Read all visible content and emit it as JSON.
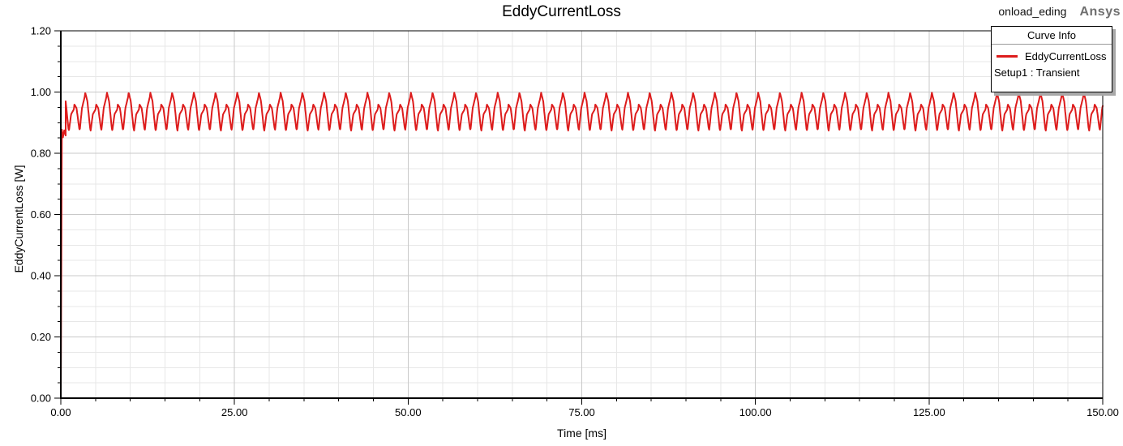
{
  "header": {
    "title": "EddyCurrentLoss",
    "doc_label": "onload_eding",
    "brand": "Ansys"
  },
  "legend": {
    "title": "Curve Info",
    "series_label": "EddyCurrentLoss",
    "series_sublabel": "Setup1 : Transient",
    "series_color": "#dd1c1c"
  },
  "axes": {
    "x": {
      "label": "Time [ms]",
      "min": 0,
      "max": 150,
      "tick_values": [
        0,
        25,
        50,
        75,
        100,
        125,
        150
      ],
      "tick_labels": [
        "0.00",
        "25.00",
        "50.00",
        "75.00",
        "100.00",
        "125.00",
        "150.00"
      ],
      "minor_step": 5
    },
    "y": {
      "label": "EddyCurrentLoss [W]",
      "min": 0,
      "max": 1.2,
      "tick_values": [
        0,
        0.2,
        0.4,
        0.6,
        0.8,
        1.0,
        1.2
      ],
      "tick_labels": [
        "0.00",
        "0.20",
        "0.40",
        "0.60",
        "0.80",
        "1.00",
        "1.20"
      ],
      "minor_step": 0.05
    }
  },
  "colors": {
    "curve": "#dd1c1c",
    "grid_minor": "#e7e7e7",
    "grid_major": "#c9c9c9",
    "axis": "#000000",
    "legend_shadow": "#a8a8a8",
    "brand_gray": "#6f6f6f"
  },
  "chart_data": {
    "type": "line",
    "title": "EddyCurrentLoss",
    "xlabel": "Time [ms]",
    "ylabel": "EddyCurrentLoss [W]",
    "xlim": [
      0,
      150
    ],
    "ylim": [
      0,
      1.2
    ],
    "x_major_step": 25,
    "x_minor_step": 5,
    "y_major_step": 0.2,
    "y_minor_step": 0.05,
    "grid": true,
    "legend_position": "top-right",
    "series": [
      {
        "name": "EddyCurrentLoss",
        "setup": "Setup1 : Transient",
        "color": "#dd1c1c",
        "description": "Rises from 0 W at t=0 to about 0.88 W within 0.2 ms, then oscillates steadily between about 0.85 W and 1.02 W (mean ~0.93 W) with ~1.56 ms peak spacing for the full 150 ms span",
        "steady_state": {
          "mean": 0.935,
          "min": 0.85,
          "max": 1.02,
          "peak_spacing_ms": 1.5625
        },
        "startup_points": [
          [
            0,
            0
          ],
          [
            0.15,
            0.877
          ],
          [
            0.3,
            0.852
          ],
          [
            0.5,
            0.875
          ],
          [
            0.7,
            0.858
          ]
        ],
        "generator": {
          "dt": 0.05,
          "start_after_ms": 0.7,
          "mean": 0.935,
          "components": [
            {
              "wave": "triangle",
              "amp": 0.052,
              "period_ms": 1.5625,
              "phase": 0.0
            },
            {
              "wave": "triangle",
              "amp": 0.021,
              "period_ms": 3.125,
              "phase": 0.9
            },
            {
              "wave": "triangle",
              "amp": 0.013,
              "period_ms": 0.78125,
              "phase": 2.2
            }
          ]
        }
      }
    ]
  }
}
